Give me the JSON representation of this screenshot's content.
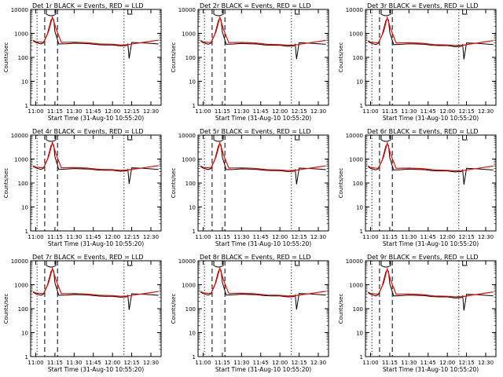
{
  "chart_data": [
    {
      "type": "line",
      "title": "Det 1r BLACK = Events, RED = LLD",
      "xlabel": "Start Time (31-Aug-10 10:55:20)",
      "ylabel": "Counts/sec",
      "xtick_labels": [
        "11:00",
        "11:15",
        "11:30",
        "11:45",
        "12:00",
        "12:15",
        "12:30"
      ],
      "ytick_labels": [
        "1",
        "10",
        "100",
        "1000",
        "10000"
      ],
      "ylim": [
        1,
        10000
      ],
      "y_scale": "log",
      "series": [
        {
          "color": "#000000",
          "x_minutes": [
            -2,
            0,
            4,
            6,
            9,
            12,
            13,
            14,
            15,
            18,
            24,
            30,
            36,
            42,
            48,
            54,
            60,
            66,
            71,
            72,
            73,
            75,
            84,
            90,
            96
          ],
          "values": [
            480,
            420,
            360,
            400,
            900,
            3600,
            4400,
            3800,
            1200,
            360,
            370,
            390,
            380,
            370,
            340,
            330,
            330,
            300,
            310,
            360,
            90,
            420,
            400,
            380,
            360
          ]
        },
        {
          "color": "#ff0000",
          "x_minutes": [
            -2,
            0,
            6,
            10,
            13,
            16,
            20,
            30,
            40,
            50,
            60,
            66,
            72,
            78,
            84,
            90,
            96
          ],
          "values": [
            520,
            450,
            420,
            1200,
            4800,
            1500,
            420,
            430,
            410,
            360,
            350,
            330,
            340,
            380,
            420,
            470,
            520
          ]
        }
      ]
    },
    {
      "type": "line",
      "title": "Det 2r BLACK = Events, RED = LLD",
      "xlabel": "Start Time (31-Aug-10 10:55:20)",
      "ylabel": "Counts/sec",
      "xtick_labels": [
        "11:00",
        "11:15",
        "11:30",
        "11:45",
        "12:00",
        "12:15",
        "12:30"
      ],
      "ytick_labels": [
        "1",
        "10",
        "100",
        "1000",
        "10000"
      ],
      "ylim": [
        1,
        10000
      ],
      "y_scale": "log",
      "series": [
        {
          "color": "#000000",
          "x_minutes": [
            -2,
            0,
            4,
            6,
            9,
            12,
            13,
            14,
            15,
            18,
            24,
            30,
            36,
            42,
            48,
            54,
            60,
            66,
            71,
            72,
            73,
            75,
            84,
            90,
            96
          ],
          "values": [
            470,
            410,
            350,
            390,
            880,
            3500,
            4300,
            3700,
            1150,
            350,
            360,
            380,
            370,
            360,
            330,
            320,
            320,
            290,
            300,
            350,
            85,
            410,
            390,
            370,
            350
          ]
        },
        {
          "color": "#ff0000",
          "x_minutes": [
            -2,
            0,
            6,
            10,
            13,
            16,
            20,
            30,
            40,
            50,
            60,
            66,
            72,
            78,
            84,
            90,
            96
          ],
          "values": [
            510,
            440,
            410,
            1150,
            4700,
            1450,
            410,
            420,
            400,
            350,
            340,
            320,
            330,
            370,
            410,
            460,
            510
          ]
        }
      ]
    },
    {
      "type": "line",
      "title": "Det 3r BLACK = Events, RED = LLD",
      "xlabel": "Start Time (31-Aug-10 10:55:20)",
      "ylabel": "Counts/sec",
      "xtick_labels": [
        "11:00",
        "11:15",
        "11:30",
        "11:45",
        "12:00",
        "12:15",
        "12:30"
      ],
      "ytick_labels": [
        "1",
        "10",
        "100",
        "1000",
        "10000"
      ],
      "ylim": [
        1,
        10000
      ],
      "y_scale": "log",
      "series": [
        {
          "color": "#000000",
          "x_minutes": [
            -2,
            0,
            4,
            6,
            9,
            12,
            13,
            14,
            15,
            18,
            24,
            30,
            36,
            42,
            48,
            54,
            60,
            66,
            71,
            72,
            73,
            75,
            84,
            90,
            96
          ],
          "values": [
            460,
            400,
            340,
            380,
            860,
            3400,
            4200,
            3600,
            1100,
            340,
            350,
            370,
            360,
            350,
            320,
            310,
            310,
            280,
            290,
            340,
            82,
            400,
            380,
            360,
            340
          ]
        },
        {
          "color": "#ff0000",
          "x_minutes": [
            -2,
            0,
            6,
            10,
            13,
            16,
            20,
            30,
            40,
            50,
            60,
            66,
            72,
            78,
            84,
            90,
            96
          ],
          "values": [
            500,
            430,
            400,
            1100,
            4600,
            1400,
            400,
            410,
            390,
            340,
            330,
            310,
            320,
            360,
            400,
            450,
            500
          ]
        }
      ]
    },
    {
      "type": "line",
      "title": "Det 4r BLACK = Events, RED = LLD",
      "xlabel": "Start Time (31-Aug-10 10:55:20)",
      "ylabel": "Counts/sec",
      "xtick_labels": [
        "11:00",
        "11:15",
        "11:30",
        "11:45",
        "12:00",
        "12:15",
        "12:30"
      ],
      "ytick_labels": [
        "1",
        "10",
        "100",
        "1000",
        "10000"
      ],
      "ylim": [
        1,
        10000
      ],
      "y_scale": "log",
      "series": [
        {
          "color": "#000000",
          "x_minutes": [
            -2,
            0,
            4,
            6,
            9,
            12,
            13,
            14,
            15,
            18,
            24,
            30,
            36,
            42,
            48,
            54,
            60,
            66,
            71,
            72,
            73,
            75,
            84,
            90,
            96
          ],
          "values": [
            490,
            430,
            370,
            410,
            920,
            3700,
            4500,
            3900,
            1250,
            370,
            380,
            400,
            390,
            380,
            350,
            340,
            340,
            310,
            320,
            370,
            92,
            430,
            410,
            390,
            370
          ]
        },
        {
          "color": "#ff0000",
          "x_minutes": [
            -2,
            0,
            6,
            10,
            13,
            16,
            20,
            30,
            40,
            50,
            60,
            66,
            72,
            78,
            84,
            90,
            96
          ],
          "values": [
            530,
            460,
            430,
            1250,
            4900,
            1550,
            430,
            440,
            420,
            370,
            360,
            340,
            350,
            390,
            430,
            480,
            530
          ]
        }
      ]
    },
    {
      "type": "line",
      "title": "Det 5r BLACK = Events, RED = LLD",
      "xlabel": "Start Time (31-Aug-10 10:55:20)",
      "ylabel": "Counts/sec",
      "xtick_labels": [
        "11:00",
        "11:15",
        "11:30",
        "11:45",
        "12:00",
        "12:15",
        "12:30"
      ],
      "ytick_labels": [
        "1",
        "10",
        "100",
        "1000",
        "10000"
      ],
      "ylim": [
        1,
        10000
      ],
      "y_scale": "log",
      "series": [
        {
          "color": "#000000",
          "x_minutes": [
            -2,
            0,
            4,
            6,
            9,
            12,
            13,
            14,
            15,
            18,
            24,
            30,
            36,
            42,
            48,
            54,
            60,
            66,
            71,
            72,
            73,
            75,
            84,
            90,
            96
          ],
          "values": [
            480,
            420,
            360,
            400,
            900,
            3600,
            4400,
            3800,
            1200,
            360,
            370,
            390,
            380,
            370,
            340,
            330,
            330,
            300,
            310,
            360,
            88,
            420,
            400,
            380,
            360
          ]
        },
        {
          "color": "#ff0000",
          "x_minutes": [
            -2,
            0,
            6,
            10,
            13,
            16,
            20,
            30,
            40,
            50,
            60,
            66,
            72,
            78,
            84,
            90,
            96
          ],
          "values": [
            520,
            450,
            420,
            1200,
            4800,
            1500,
            420,
            430,
            410,
            360,
            350,
            330,
            340,
            380,
            420,
            470,
            520
          ]
        }
      ]
    },
    {
      "type": "line",
      "title": "Det 6r BLACK = Events, RED = LLD",
      "xlabel": "Start Time (31-Aug-10 10:55:20)",
      "ylabel": "Counts/sec",
      "xtick_labels": [
        "11:00",
        "11:15",
        "11:30",
        "11:45",
        "12:00",
        "12:15",
        "12:30"
      ],
      "ytick_labels": [
        "1",
        "10",
        "100",
        "1000",
        "10000"
      ],
      "ylim": [
        1,
        10000
      ],
      "y_scale": "log",
      "series": [
        {
          "color": "#000000",
          "x_minutes": [
            -2,
            0,
            4,
            6,
            9,
            12,
            13,
            14,
            15,
            18,
            24,
            30,
            36,
            42,
            48,
            54,
            60,
            66,
            71,
            72,
            73,
            75,
            84,
            90,
            96
          ],
          "values": [
            470,
            410,
            350,
            390,
            880,
            3500,
            4300,
            3700,
            1150,
            350,
            360,
            380,
            370,
            360,
            330,
            320,
            320,
            290,
            300,
            350,
            86,
            410,
            390,
            370,
            350
          ]
        },
        {
          "color": "#ff0000",
          "x_minutes": [
            -2,
            0,
            6,
            10,
            13,
            16,
            20,
            30,
            40,
            50,
            60,
            66,
            72,
            78,
            84,
            90,
            96
          ],
          "values": [
            510,
            440,
            410,
            1150,
            4700,
            1450,
            410,
            420,
            400,
            350,
            340,
            320,
            330,
            370,
            410,
            460,
            510
          ]
        }
      ]
    },
    {
      "type": "line",
      "title": "Det 7r BLACK = Events, RED = LLD",
      "xlabel": "Start Time (31-Aug-10 10:55:20)",
      "ylabel": "Counts/sec",
      "xtick_labels": [
        "11:00",
        "11:15",
        "11:30",
        "11:45",
        "12:00",
        "12:15",
        "12:30"
      ],
      "ytick_labels": [
        "1",
        "10",
        "100",
        "1000",
        "10000"
      ],
      "ylim": [
        1,
        10000
      ],
      "y_scale": "log",
      "series": [
        {
          "color": "#000000",
          "x_minutes": [
            -2,
            0,
            4,
            6,
            9,
            12,
            13,
            14,
            15,
            18,
            24,
            30,
            36,
            42,
            48,
            54,
            60,
            66,
            71,
            72,
            73,
            75,
            84,
            90,
            96
          ],
          "values": [
            480,
            420,
            360,
            400,
            900,
            3600,
            4400,
            3800,
            1200,
            360,
            370,
            390,
            380,
            370,
            340,
            330,
            330,
            300,
            310,
            360,
            90,
            420,
            400,
            380,
            360
          ]
        },
        {
          "color": "#ff0000",
          "x_minutes": [
            -2,
            0,
            6,
            10,
            13,
            16,
            20,
            30,
            40,
            50,
            60,
            66,
            72,
            78,
            84,
            90,
            96
          ],
          "values": [
            520,
            450,
            420,
            1200,
            4800,
            1500,
            420,
            430,
            410,
            360,
            350,
            330,
            340,
            380,
            420,
            470,
            520
          ]
        }
      ]
    },
    {
      "type": "line",
      "title": "Det 8r BLACK = Events, RED = LLD",
      "xlabel": "Start Time (31-Aug-10 10:55:20)",
      "ylabel": "Counts/sec",
      "xtick_labels": [
        "11:00",
        "11:15",
        "11:30",
        "11:45",
        "12:00",
        "12:15",
        "12:30"
      ],
      "ytick_labels": [
        "1",
        "10",
        "100",
        "1000",
        "10000"
      ],
      "ylim": [
        1,
        10000
      ],
      "y_scale": "log",
      "series": [
        {
          "color": "#000000",
          "x_minutes": [
            -2,
            0,
            4,
            6,
            9,
            12,
            13,
            14,
            15,
            18,
            24,
            30,
            36,
            42,
            48,
            54,
            60,
            66,
            71,
            72,
            73,
            75,
            84,
            90,
            96
          ],
          "values": [
            490,
            430,
            370,
            410,
            920,
            3700,
            4500,
            3900,
            1250,
            370,
            380,
            400,
            390,
            380,
            350,
            340,
            340,
            310,
            320,
            370,
            92,
            430,
            410,
            390,
            370
          ]
        },
        {
          "color": "#ff0000",
          "x_minutes": [
            -2,
            0,
            6,
            10,
            13,
            16,
            20,
            30,
            40,
            50,
            60,
            66,
            72,
            78,
            84,
            90,
            96
          ],
          "values": [
            530,
            460,
            430,
            1250,
            4900,
            1550,
            430,
            440,
            420,
            370,
            360,
            340,
            350,
            390,
            430,
            480,
            530
          ]
        }
      ]
    },
    {
      "type": "line",
      "title": "Det 9r BLACK = Events, RED = LLD",
      "xlabel": "Start Time (31-Aug-10 10:55:20)",
      "ylabel": "Counts/sec",
      "xtick_labels": [
        "11:00",
        "11:15",
        "11:30",
        "11:45",
        "12:00",
        "12:15",
        "12:30"
      ],
      "ytick_labels": [
        "1",
        "10",
        "100",
        "1000",
        "10000"
      ],
      "ylim": [
        1,
        10000
      ],
      "y_scale": "log",
      "series": [
        {
          "color": "#000000",
          "x_minutes": [
            -2,
            0,
            4,
            6,
            9,
            12,
            13,
            14,
            15,
            18,
            24,
            30,
            36,
            42,
            48,
            54,
            60,
            66,
            71,
            72,
            73,
            75,
            84,
            90,
            96
          ],
          "values": [
            460,
            400,
            340,
            380,
            860,
            3400,
            4200,
            3600,
            1100,
            340,
            350,
            370,
            360,
            350,
            320,
            310,
            310,
            280,
            290,
            340,
            84,
            400,
            380,
            360,
            340
          ]
        },
        {
          "color": "#ff0000",
          "x_minutes": [
            -2,
            0,
            6,
            10,
            13,
            16,
            20,
            30,
            40,
            50,
            60,
            66,
            72,
            78,
            84,
            90,
            96
          ],
          "values": [
            500,
            430,
            400,
            1100,
            4600,
            1400,
            400,
            410,
            390,
            340,
            330,
            310,
            320,
            360,
            400,
            450,
            500
          ]
        }
      ]
    }
  ]
}
